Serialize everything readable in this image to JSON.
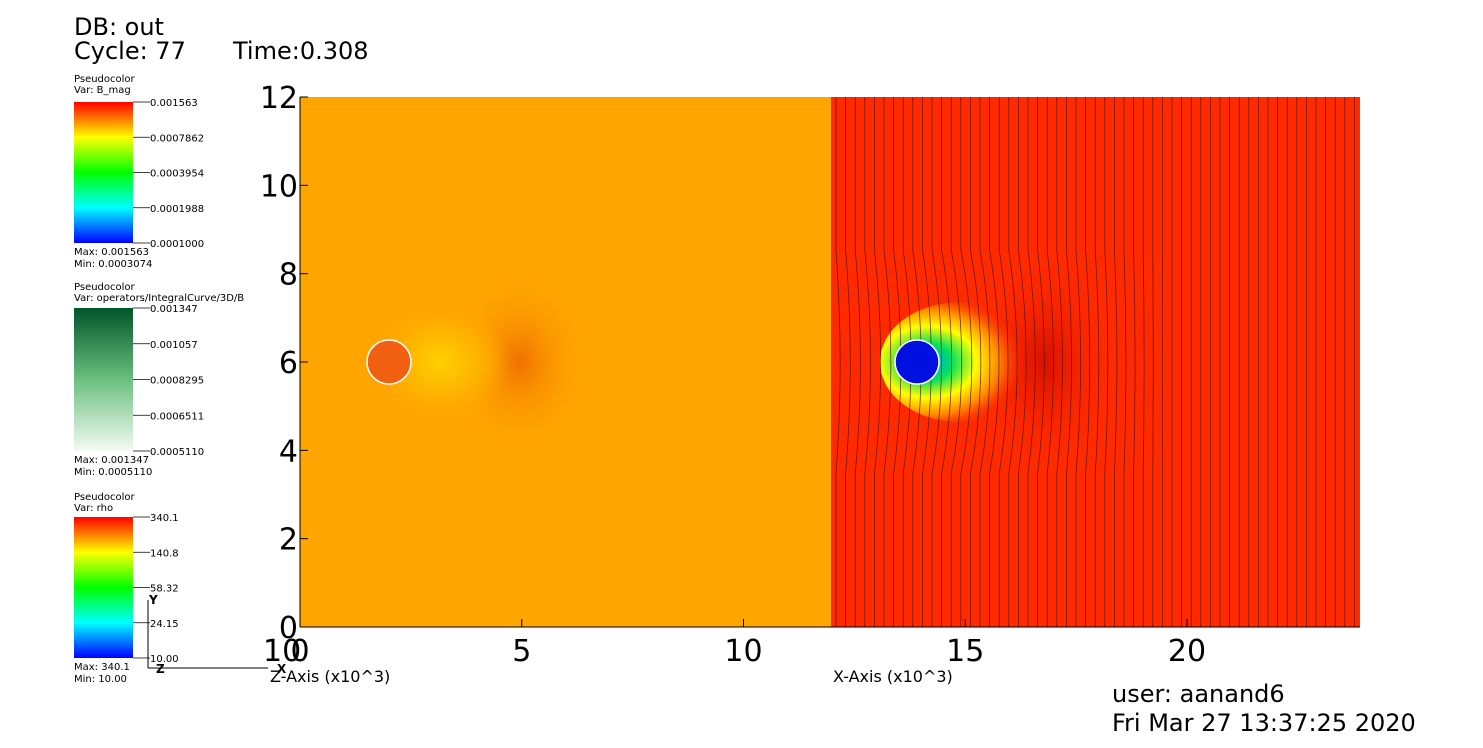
{
  "header": {
    "db": "DB: out",
    "cycle": "Cycle: 77",
    "time": "Time:0.308"
  },
  "legends": [
    {
      "title": "Pseudocolor",
      "var": "Var: B_mag",
      "labels": [
        "0.001563",
        "0.0007862",
        "0.0003954",
        "0.0001988",
        "0.0001000"
      ],
      "max": "Max: 0.001563",
      "min": "Min: 0.0003074"
    },
    {
      "title": "Pseudocolor",
      "var": "Var: operators/IntegralCurve/3D/B",
      "labels": [
        "0.001347",
        "0.001057",
        "0.0008295",
        "0.0006511",
        "0.0005110"
      ],
      "max": "Max: 0.001347",
      "min": "Min: 0.0005110"
    },
    {
      "title": "Pseudocolor",
      "var": "Var: rho",
      "labels": [
        "340.1",
        "140.8",
        "58.32",
        "24.15",
        "10.00"
      ],
      "max": "Max: 340.1",
      "min": "Min: 10.00"
    }
  ],
  "plot": {
    "xlim": [
      0,
      23.9
    ],
    "ylim": [
      0,
      12
    ],
    "xticks": [
      0,
      5,
      10,
      15,
      20
    ],
    "yticks": [
      0,
      2,
      4,
      6,
      8,
      10,
      12
    ],
    "z_tick": "10",
    "x_title_left": "Z-Axis (x10^3)",
    "x_title_right": "X-Axis (x10^3)"
  },
  "triad": {
    "y": "Y",
    "x": "X",
    "z": "Z"
  },
  "footer": {
    "user": "user: aanand6",
    "date": "Fri Mar 27 13:37:25 2020"
  }
}
